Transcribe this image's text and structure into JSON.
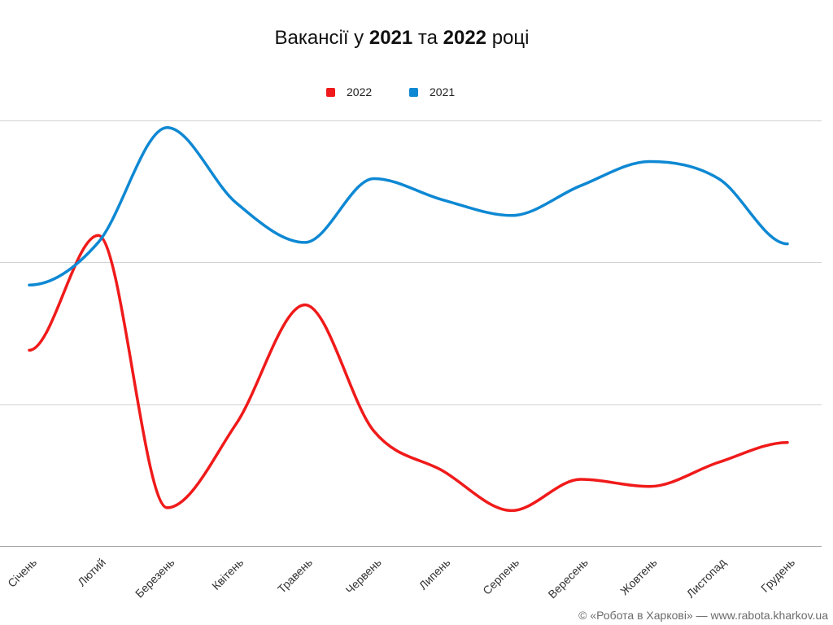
{
  "chart_data": {
    "type": "line",
    "title": "Вакансії у 2021 та 2022 році",
    "categories": [
      "Січень",
      "Лютий",
      "Березень",
      "Квітень",
      "Травень",
      "Червень",
      "Липень",
      "Серпень",
      "Вересень",
      "Жовтень",
      "Листопад",
      "Грудень"
    ],
    "series": [
      {
        "name": "2022",
        "color": "#f01a1a",
        "values": [
          1.38,
          2.19,
          0.27,
          0.86,
          1.7,
          0.81,
          0.53,
          0.25,
          0.47,
          0.42,
          0.59,
          0.73
        ]
      },
      {
        "name": "2021",
        "color": "#0e88d3",
        "values": [
          1.84,
          2.14,
          2.95,
          2.42,
          2.14,
          2.59,
          2.44,
          2.33,
          2.54,
          2.71,
          2.59,
          2.13
        ]
      }
    ],
    "xlabel": "",
    "ylabel": "",
    "ylim": [
      0,
      3
    ],
    "y_gridlines": [
      0,
      1,
      2,
      3
    ],
    "grid": true,
    "smooth": true,
    "legend_position": "top-center"
  },
  "footer": {
    "credit": "© «Робота в Харкові» — www.rabota.kharkov.ua"
  }
}
